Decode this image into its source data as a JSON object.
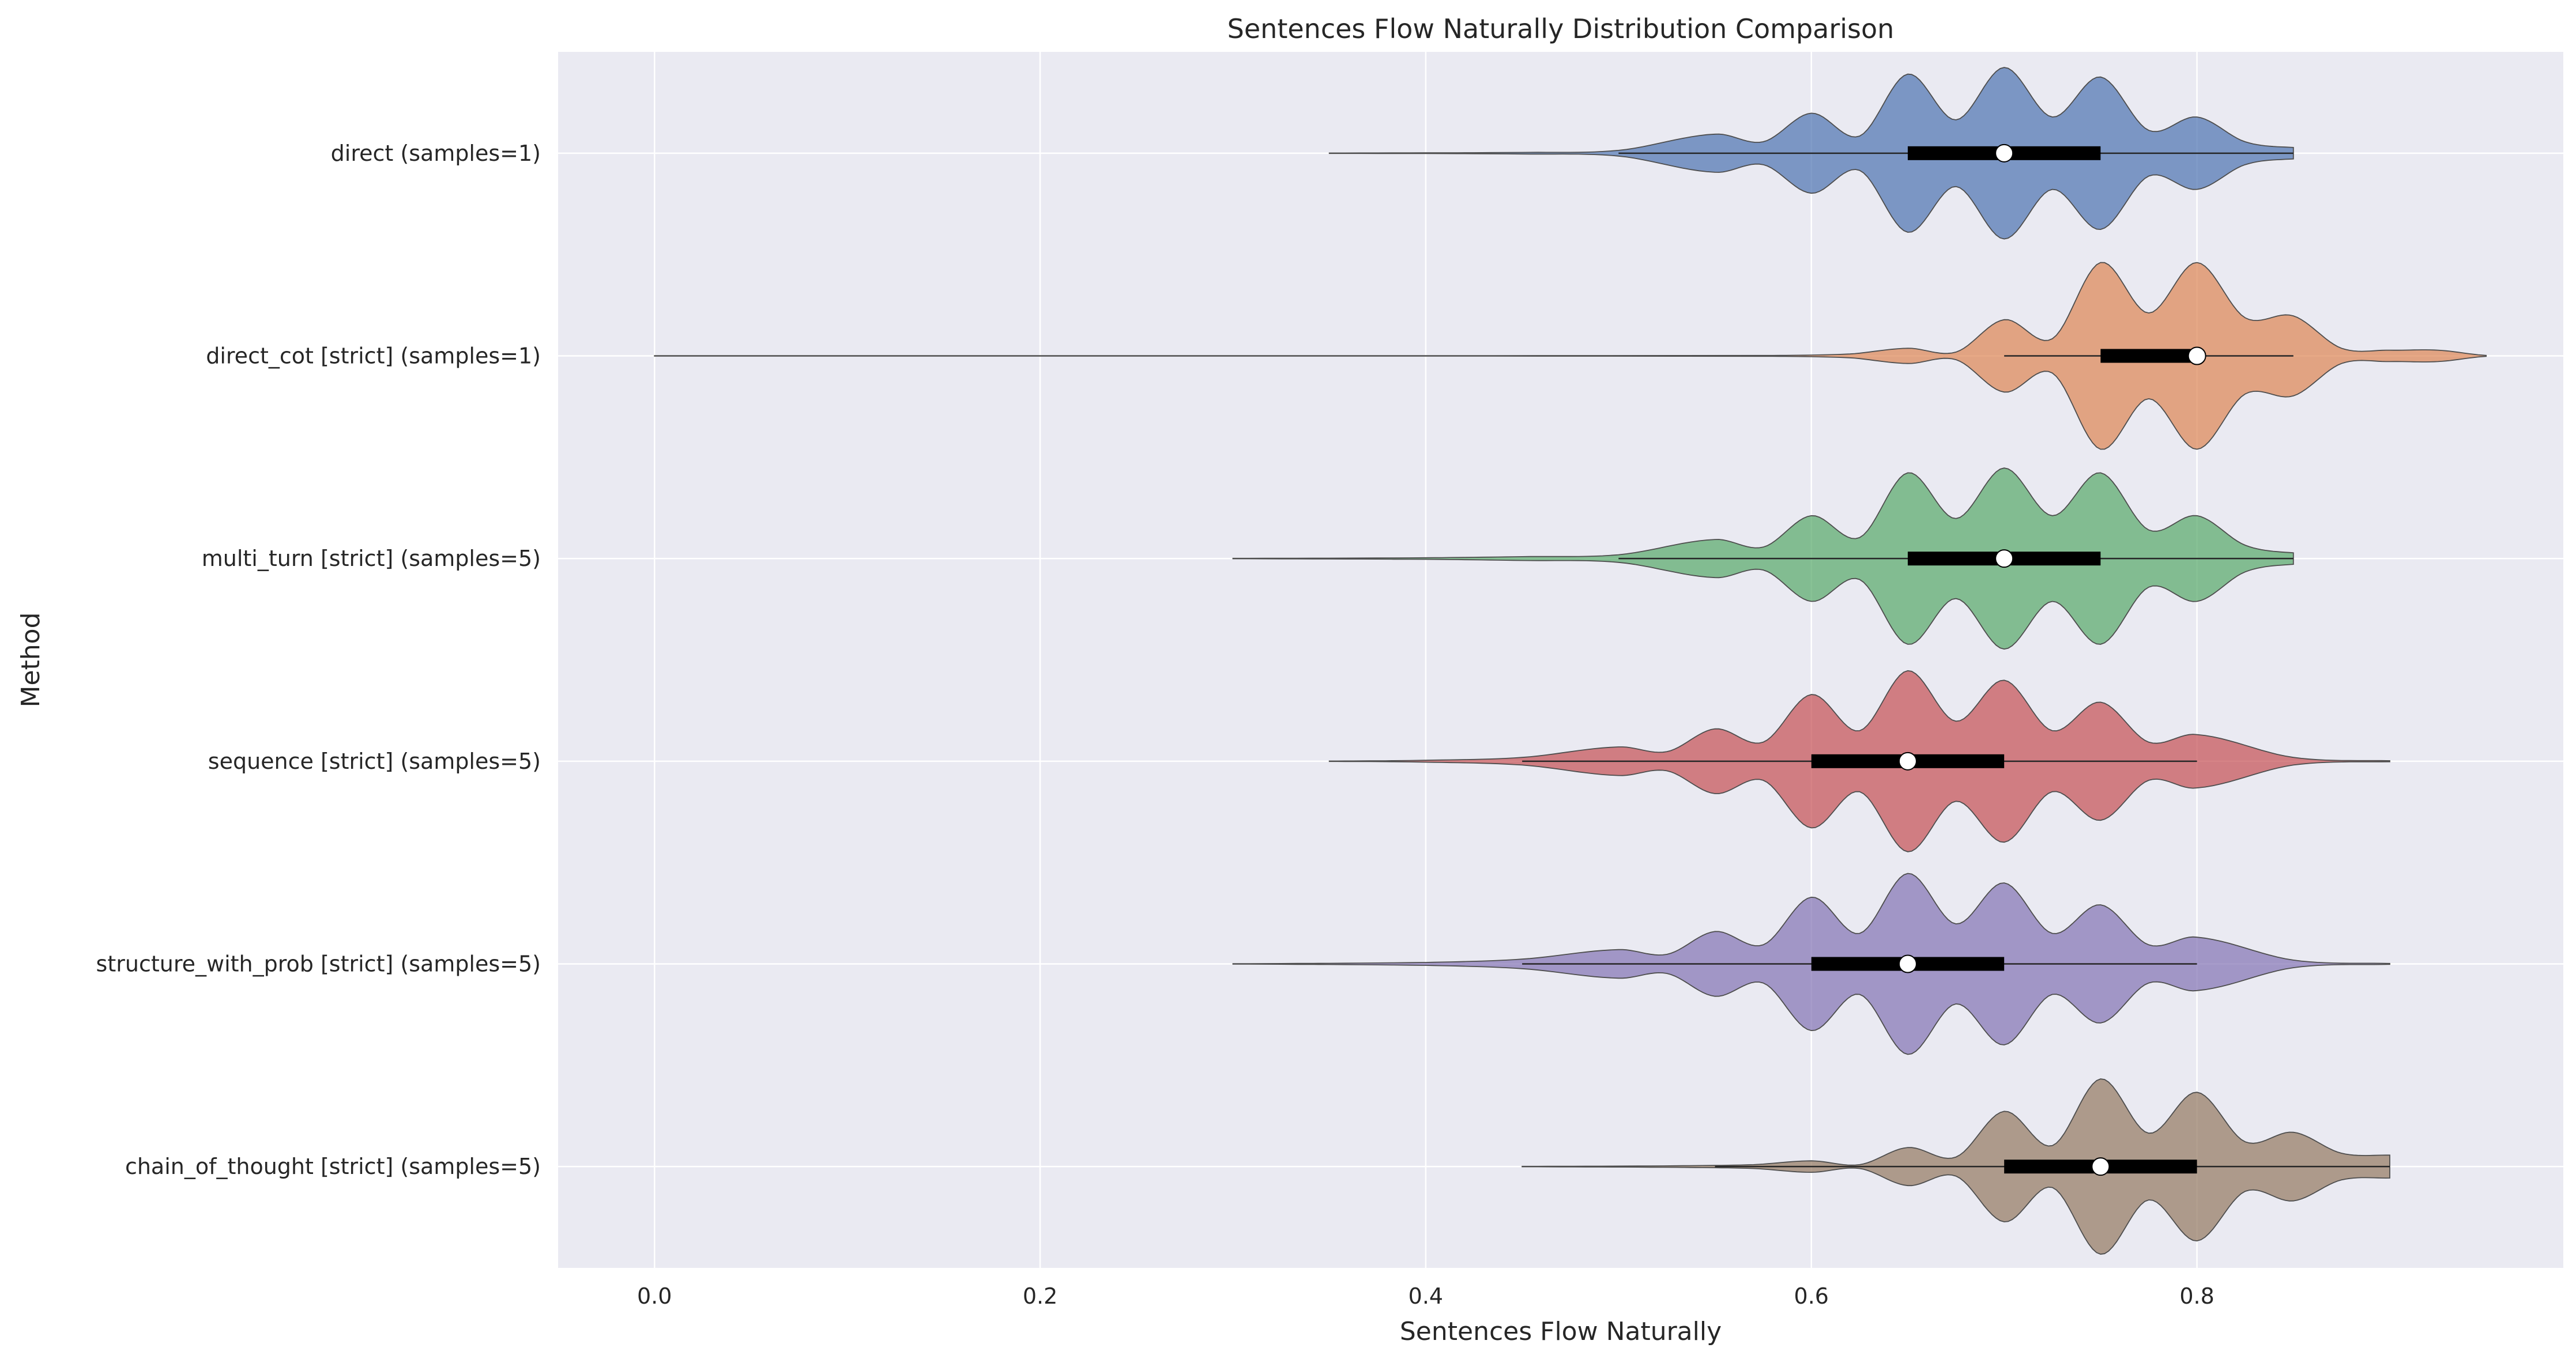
{
  "chart_data": {
    "type": "violin",
    "title": "Sentences Flow Naturally Distribution Comparison",
    "xlabel": "Sentences Flow Naturally",
    "ylabel": "Method",
    "xlim": [
      -0.05,
      0.99
    ],
    "xticks": [
      0.0,
      0.2,
      0.4,
      0.6,
      0.8
    ],
    "xtick_labels": [
      "0.0",
      "0.2",
      "0.4",
      "0.6",
      "0.8"
    ],
    "grid": true,
    "orientation": "horizontal",
    "series": [
      {
        "name": "direct (samples=1)",
        "color": "#4c72b0",
        "range": [
          0.35,
          0.85
        ],
        "whisker": [
          0.5,
          0.85
        ],
        "q1": 0.65,
        "median": 0.7,
        "q3": 0.75,
        "density": [
          [
            0.35,
            0.002
          ],
          [
            0.45,
            0.008
          ],
          [
            0.5,
            0.03
          ],
          [
            0.55,
            0.2
          ],
          [
            0.575,
            0.12
          ],
          [
            0.6,
            0.42
          ],
          [
            0.625,
            0.18
          ],
          [
            0.65,
            0.83
          ],
          [
            0.675,
            0.35
          ],
          [
            0.7,
            0.9
          ],
          [
            0.725,
            0.38
          ],
          [
            0.75,
            0.8
          ],
          [
            0.775,
            0.24
          ],
          [
            0.8,
            0.38
          ],
          [
            0.825,
            0.12
          ],
          [
            0.85,
            0.06
          ]
        ]
      },
      {
        "name": "direct_cot [strict] (samples=1)",
        "color": "#dd8452",
        "range": [
          0.0,
          0.95
        ],
        "whisker": [
          0.7,
          0.85
        ],
        "q1": 0.75,
        "median": 0.8,
        "q3": 0.8,
        "density": [
          [
            0.0,
            0.002
          ],
          [
            0.58,
            0.004
          ],
          [
            0.62,
            0.02
          ],
          [
            0.65,
            0.08
          ],
          [
            0.675,
            0.04
          ],
          [
            0.7,
            0.38
          ],
          [
            0.725,
            0.18
          ],
          [
            0.75,
            0.98
          ],
          [
            0.775,
            0.45
          ],
          [
            0.8,
            0.98
          ],
          [
            0.825,
            0.4
          ],
          [
            0.85,
            0.42
          ],
          [
            0.875,
            0.08
          ],
          [
            0.9,
            0.06
          ],
          [
            0.925,
            0.06
          ],
          [
            0.95,
            0.005
          ]
        ]
      },
      {
        "name": "multi_turn [strict] (samples=5)",
        "color": "#55a868",
        "range": [
          0.3,
          0.85
        ],
        "whisker": [
          0.5,
          0.85
        ],
        "q1": 0.65,
        "median": 0.7,
        "q3": 0.75,
        "density": [
          [
            0.3,
            0.002
          ],
          [
            0.4,
            0.008
          ],
          [
            0.45,
            0.02
          ],
          [
            0.5,
            0.04
          ],
          [
            0.55,
            0.2
          ],
          [
            0.575,
            0.12
          ],
          [
            0.6,
            0.45
          ],
          [
            0.625,
            0.22
          ],
          [
            0.65,
            0.9
          ],
          [
            0.675,
            0.42
          ],
          [
            0.7,
            0.95
          ],
          [
            0.725,
            0.45
          ],
          [
            0.75,
            0.9
          ],
          [
            0.775,
            0.3
          ],
          [
            0.8,
            0.45
          ],
          [
            0.825,
            0.14
          ],
          [
            0.85,
            0.06
          ]
        ]
      },
      {
        "name": "sequence [strict] (samples=5)",
        "color": "#c44e52",
        "range": [
          0.35,
          0.9
        ],
        "whisker": [
          0.45,
          0.8
        ],
        "q1": 0.6,
        "median": 0.65,
        "q3": 0.7,
        "density": [
          [
            0.35,
            0.002
          ],
          [
            0.4,
            0.01
          ],
          [
            0.45,
            0.04
          ],
          [
            0.5,
            0.15
          ],
          [
            0.525,
            0.1
          ],
          [
            0.55,
            0.34
          ],
          [
            0.575,
            0.2
          ],
          [
            0.6,
            0.7
          ],
          [
            0.625,
            0.32
          ],
          [
            0.65,
            0.95
          ],
          [
            0.675,
            0.42
          ],
          [
            0.7,
            0.85
          ],
          [
            0.725,
            0.32
          ],
          [
            0.75,
            0.62
          ],
          [
            0.775,
            0.2
          ],
          [
            0.8,
            0.28
          ],
          [
            0.85,
            0.04
          ],
          [
            0.9,
            0.005
          ]
        ]
      },
      {
        "name": "structure_with_prob [strict] (samples=5)",
        "color": "#8172b3",
        "range": [
          0.3,
          0.9
        ],
        "whisker": [
          0.45,
          0.8
        ],
        "q1": 0.6,
        "median": 0.65,
        "q3": 0.7,
        "density": [
          [
            0.3,
            0.002
          ],
          [
            0.4,
            0.015
          ],
          [
            0.45,
            0.05
          ],
          [
            0.5,
            0.15
          ],
          [
            0.525,
            0.1
          ],
          [
            0.55,
            0.34
          ],
          [
            0.575,
            0.2
          ],
          [
            0.6,
            0.7
          ],
          [
            0.625,
            0.32
          ],
          [
            0.65,
            0.95
          ],
          [
            0.675,
            0.42
          ],
          [
            0.7,
            0.85
          ],
          [
            0.725,
            0.32
          ],
          [
            0.75,
            0.62
          ],
          [
            0.775,
            0.2
          ],
          [
            0.8,
            0.28
          ],
          [
            0.85,
            0.04
          ],
          [
            0.9,
            0.005
          ]
        ]
      },
      {
        "name": "chain_of_thought [strict] (samples=5)",
        "color": "#937860",
        "range": [
          0.45,
          0.9
        ],
        "whisker": [
          0.55,
          0.9
        ],
        "q1": 0.7,
        "median": 0.75,
        "q3": 0.8,
        "density": [
          [
            0.45,
            0.002
          ],
          [
            0.53,
            0.008
          ],
          [
            0.57,
            0.02
          ],
          [
            0.6,
            0.06
          ],
          [
            0.625,
            0.02
          ],
          [
            0.65,
            0.2
          ],
          [
            0.675,
            0.1
          ],
          [
            0.7,
            0.58
          ],
          [
            0.725,
            0.22
          ],
          [
            0.75,
            0.92
          ],
          [
            0.775,
            0.35
          ],
          [
            0.8,
            0.78
          ],
          [
            0.825,
            0.26
          ],
          [
            0.85,
            0.36
          ],
          [
            0.875,
            0.14
          ],
          [
            0.9,
            0.12
          ]
        ]
      }
    ]
  }
}
